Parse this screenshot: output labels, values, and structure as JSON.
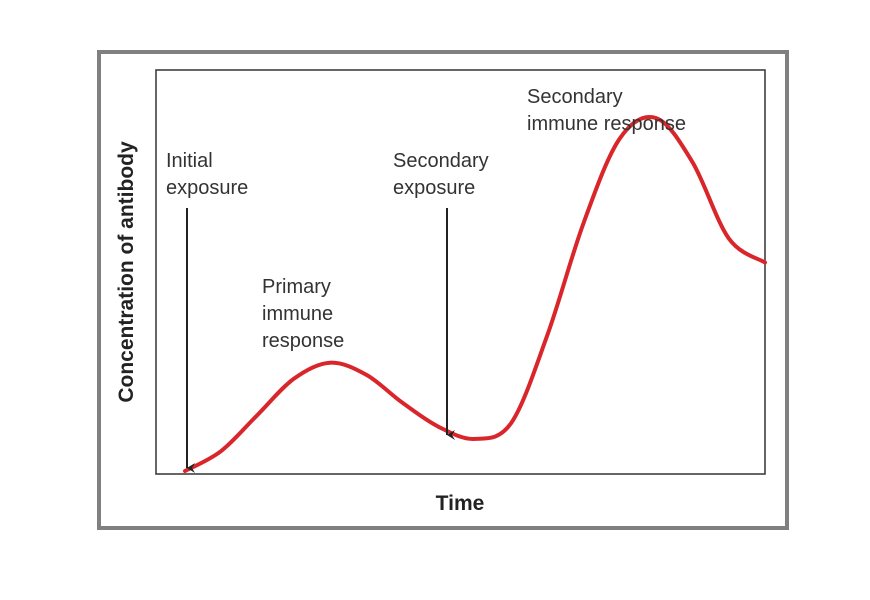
{
  "colors": {
    "curve": "#d9262b",
    "frame": "#808080",
    "axes": "#333333",
    "text": "#333333"
  },
  "chart_data": {
    "type": "line",
    "xlabel": "Time",
    "ylabel": "Concentration of antibody",
    "grid": false,
    "legend": "none",
    "series": [
      {
        "values_relative": [
          0.0,
          0.05,
          0.14,
          0.23,
          0.27,
          0.24,
          0.17,
          0.11,
          0.08,
          0.12,
          0.34,
          0.62,
          0.83,
          0.88,
          0.77,
          0.58,
          0.52
        ]
      }
    ],
    "annotations": [
      {
        "lines": [
          "Initial",
          "exposure"
        ],
        "arrow": true
      },
      {
        "lines": [
          "Primary",
          "immune",
          "response"
        ],
        "arrow": false
      },
      {
        "lines": [
          "Secondary",
          "exposure"
        ],
        "arrow": true
      },
      {
        "lines": [
          "Secondary",
          "immune response"
        ],
        "arrow": false
      }
    ]
  }
}
